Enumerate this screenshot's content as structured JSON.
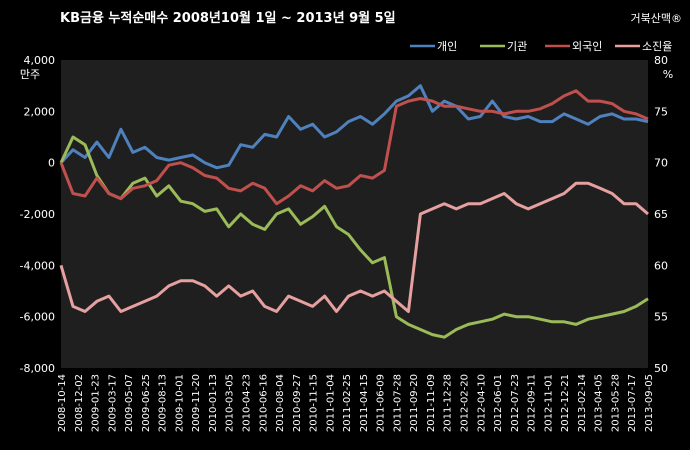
{
  "chart_data": {
    "type": "line",
    "title": "KB금융  누적순매수   2008년10월 1일 ~ 2013년 9월 5일",
    "watermark": "거북산맥®",
    "left_unit": "만주",
    "right_unit": "%",
    "left_ylim": [
      -8000,
      4000
    ],
    "left_ticks": [
      "4,000",
      "2,000",
      "0",
      "-2,000",
      "-4,000",
      "-6,000",
      "-8,000"
    ],
    "right_ylim": [
      50,
      80
    ],
    "right_ticks": [
      "80",
      "75",
      "70",
      "65",
      "60",
      "55",
      "50"
    ],
    "grid": false,
    "legend_position": "top-right",
    "colors": {
      "개인": "#4f81bd",
      "기관": "#9bbb59",
      "외국인": "#c0504d",
      "소진율": "#e6a0a0"
    },
    "x_labels": [
      "2008-10-14",
      "2008-12-02",
      "2009-01-23",
      "2009-03-17",
      "2009-05-07",
      "2009-06-25",
      "2009-08-13",
      "2009-10-01",
      "2009-11-20",
      "2010-01-13",
      "2010-03-05",
      "2010-04-23",
      "2010-06-16",
      "2010-08-04",
      "2010-09-27",
      "2010-11-15",
      "2011-01-04",
      "2011-02-25",
      "2011-04-15",
      "2011-06-09",
      "2011-07-28",
      "2011-09-20",
      "2011-11-09",
      "2011-12-28",
      "2012-02-20",
      "2012-04-10",
      "2012-06-01",
      "2012-07-23",
      "2012-09-11",
      "2012-11-01",
      "2012-12-21",
      "2013-02-14",
      "2013-04-05",
      "2013-05-28",
      "2013-07-17",
      "2013-09-05"
    ],
    "series": [
      {
        "name": "개인",
        "axis": "left",
        "values": [
          0,
          500,
          200,
          800,
          200,
          1300,
          400,
          600,
          200,
          100,
          200,
          300,
          0,
          -200,
          -100,
          700,
          600,
          1100,
          1000,
          1800,
          1300,
          1500,
          1000,
          1200,
          1600,
          1800,
          1500,
          1900,
          2400,
          2600,
          3000,
          2000,
          2400,
          2200,
          1700,
          1800,
          2400,
          1800,
          1700,
          1800,
          1600,
          1600,
          1900,
          1700,
          1500,
          1800,
          1900,
          1700,
          1700,
          1600
        ]
      },
      {
        "name": "기관",
        "axis": "left",
        "values": [
          0,
          1000,
          700,
          -500,
          -1200,
          -1400,
          -800,
          -600,
          -1300,
          -900,
          -1500,
          -1600,
          -1900,
          -1800,
          -2500,
          -2000,
          -2400,
          -2600,
          -2000,
          -1800,
          -2400,
          -2100,
          -1700,
          -2500,
          -2800,
          -3400,
          -3900,
          -3700,
          -6000,
          -6300,
          -6500,
          -6700,
          -6800,
          -6500,
          -6300,
          -6200,
          -6100,
          -5900,
          -6000,
          -6000,
          -6100,
          -6200,
          -6200,
          -6300,
          -6100,
          -6000,
          -5900,
          -5800,
          -5600,
          -5300
        ]
      },
      {
        "name": "외국인",
        "axis": "left",
        "values": [
          0,
          -1200,
          -1300,
          -600,
          -1200,
          -1400,
          -1000,
          -900,
          -700,
          -100,
          0,
          -200,
          -500,
          -600,
          -1000,
          -1100,
          -800,
          -1000,
          -1600,
          -1300,
          -900,
          -1100,
          -700,
          -1000,
          -900,
          -500,
          -600,
          -300,
          2200,
          2400,
          2500,
          2400,
          2200,
          2200,
          2100,
          2000,
          2000,
          1900,
          2000,
          2000,
          2100,
          2300,
          2600,
          2800,
          2400,
          2400,
          2300,
          2000,
          1900,
          1700
        ]
      },
      {
        "name": "소진율",
        "axis": "right",
        "values": [
          60,
          56,
          55.5,
          56.5,
          57,
          55.5,
          56,
          56.5,
          57,
          58,
          58.5,
          58.5,
          58,
          57,
          58,
          57,
          57.5,
          56,
          55.5,
          57,
          56.5,
          56,
          57,
          55.5,
          57,
          57.5,
          57,
          57.5,
          56.5,
          55.5,
          65,
          65.5,
          66,
          65.5,
          66,
          66,
          66.5,
          67,
          66,
          65.5,
          66,
          66.5,
          67,
          68,
          68,
          67.5,
          67,
          66,
          66,
          65
        ]
      }
    ]
  }
}
